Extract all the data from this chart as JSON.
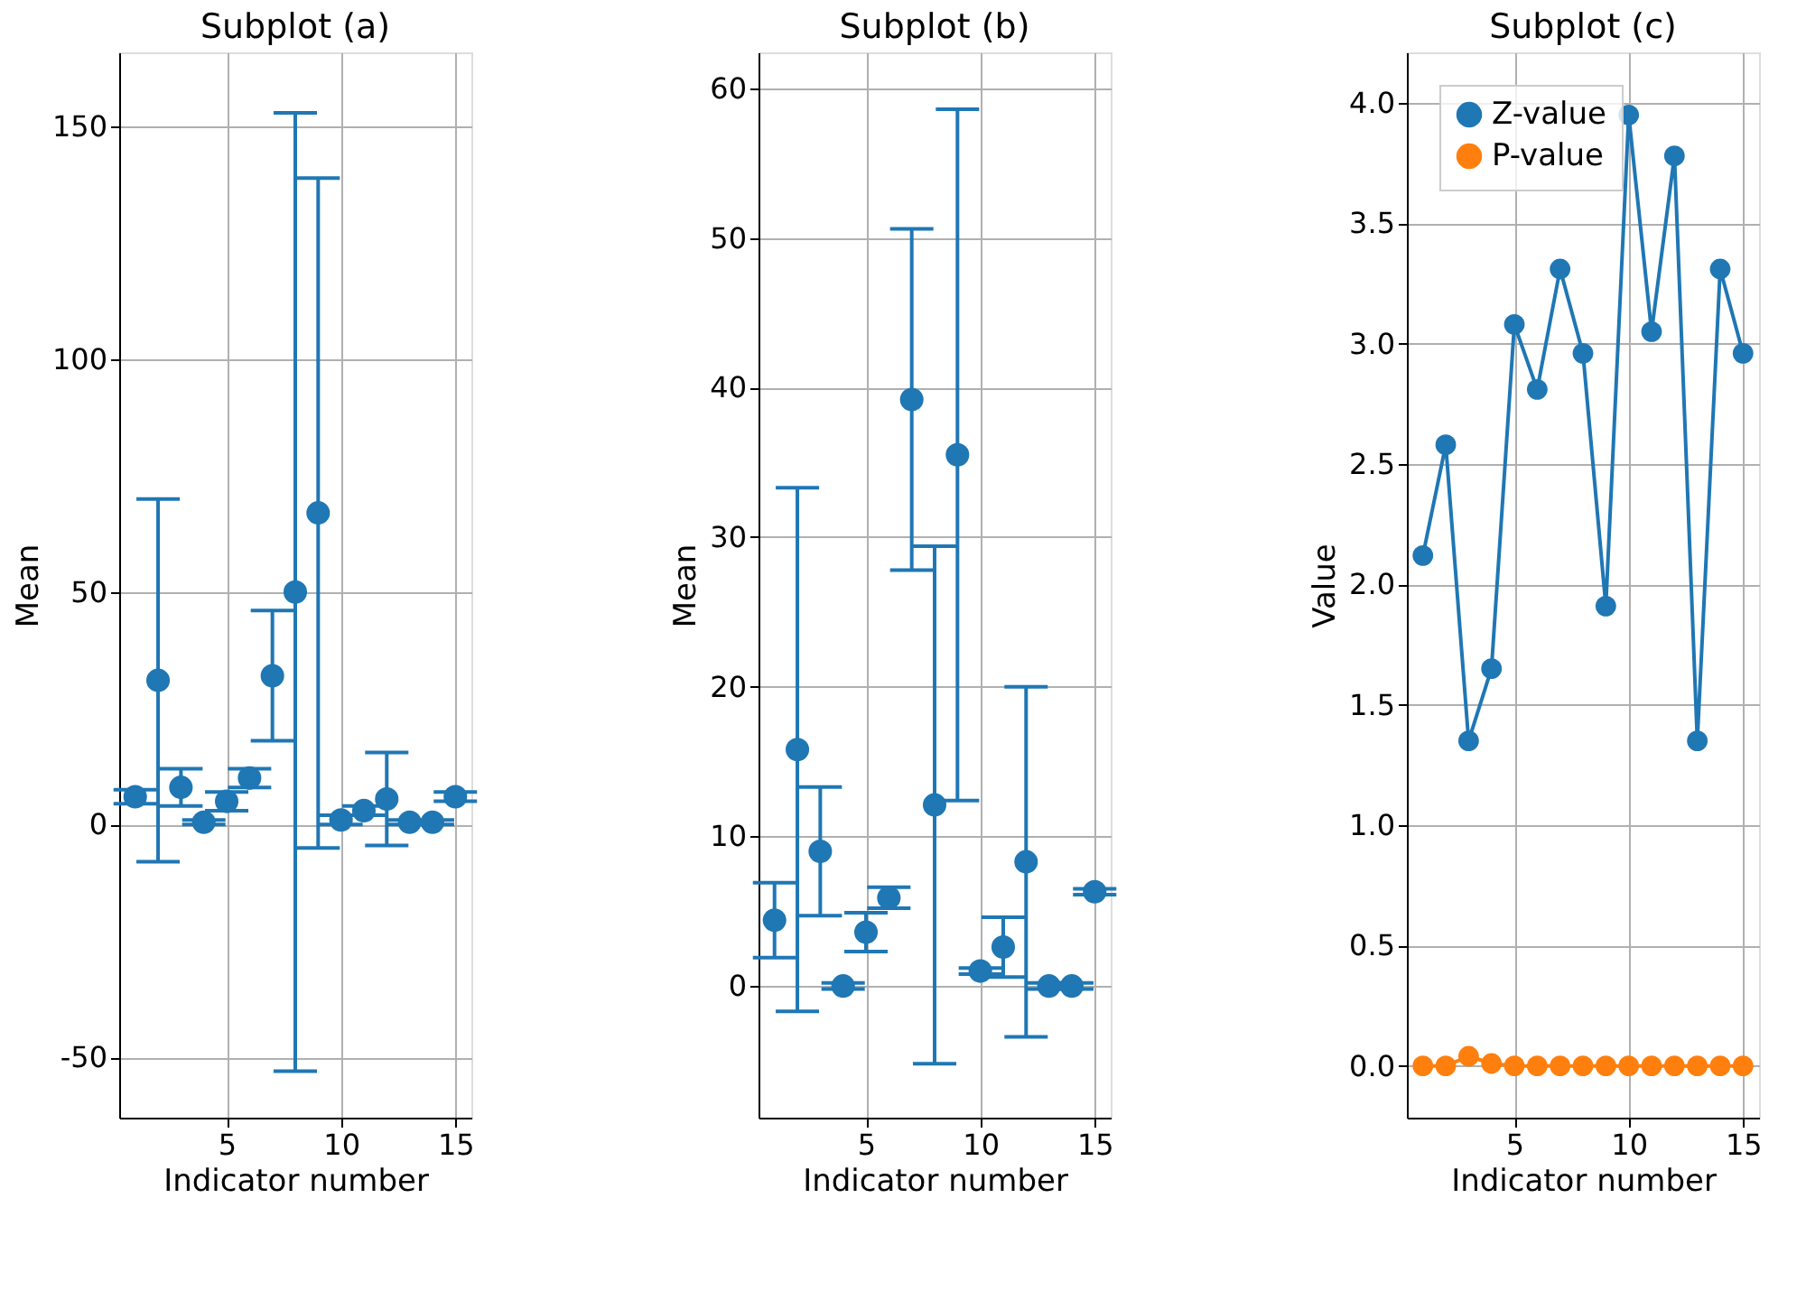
{
  "chart_data": [
    {
      "type": "scatter",
      "title": "Subplot (a)",
      "xlabel": "Indicator number",
      "ylabel": "Mean",
      "x": [
        1,
        2,
        3,
        4,
        5,
        6,
        7,
        8,
        9,
        10,
        11,
        12,
        13,
        14,
        15
      ],
      "xlim": [
        0.3,
        15.7
      ],
      "xticks": [
        5,
        10,
        15
      ],
      "ylim": [
        -63,
        166
      ],
      "yticks": [
        -50,
        0,
        50,
        100,
        150
      ],
      "grid": true,
      "marker": "circle",
      "legend": false,
      "series": [
        {
          "color": "#1f77b4",
          "values": [
            6,
            31,
            8,
            0.5,
            5,
            10,
            32,
            50,
            67,
            1,
            3,
            5.5,
            0.5,
            0.5,
            6
          ],
          "errors": [
            1.5,
            39,
            4,
            0.5,
            2,
            2,
            14,
            103,
            72,
            1,
            1,
            10,
            0.5,
            0.5,
            1
          ]
        }
      ]
    },
    {
      "type": "scatter",
      "title": "Subplot (b)",
      "xlabel": "Indicator number",
      "ylabel": "Mean",
      "x": [
        1,
        2,
        3,
        4,
        5,
        6,
        7,
        8,
        9,
        10,
        11,
        12,
        13,
        14,
        15
      ],
      "xlim": [
        0.3,
        15.7
      ],
      "xticks": [
        5,
        10,
        15
      ],
      "ylim": [
        -8.8,
        62.4
      ],
      "yticks": [
        0,
        10,
        20,
        30,
        40,
        50,
        60
      ],
      "grid": true,
      "marker": "circle",
      "legend": false,
      "series": [
        {
          "color": "#1f77b4",
          "values": [
            4.4,
            15.8,
            9,
            0,
            3.6,
            5.9,
            39.2,
            12.1,
            35.5,
            1,
            2.6,
            8.3,
            0,
            0,
            6.3
          ],
          "errors": [
            2.5,
            17.5,
            4.3,
            0.2,
            1.3,
            0.7,
            11.4,
            17.3,
            23.1,
            0.2,
            2,
            11.7,
            0.2,
            0.2,
            0.2
          ]
        }
      ]
    },
    {
      "type": "line",
      "title": "Subplot (c)",
      "xlabel": "Indicator number",
      "ylabel": "Value",
      "x": [
        1,
        2,
        3,
        4,
        5,
        6,
        7,
        8,
        9,
        10,
        11,
        12,
        13,
        14,
        15
      ],
      "xlim": [
        0.3,
        15.7
      ],
      "xticks": [
        5,
        10,
        15
      ],
      "ylim": [
        -0.215,
        4.21
      ],
      "yticks": [
        {
          "value": 0,
          "label": "0.0"
        },
        {
          "value": 0.5,
          "label": "0.5"
        },
        {
          "value": 1,
          "label": "1.0"
        },
        {
          "value": 1.5,
          "label": "1.5"
        },
        {
          "value": 2,
          "label": "2.0"
        },
        {
          "value": 2.5,
          "label": "2.5"
        },
        {
          "value": 3,
          "label": "3.0"
        },
        {
          "value": 3.5,
          "label": "3.5"
        },
        {
          "value": 4,
          "label": "4.0"
        }
      ],
      "grid": true,
      "marker": "circle",
      "line_style": "solid",
      "legend": "top left",
      "series": [
        {
          "name": "Z-value",
          "color": "#1f77b4",
          "values": [
            2.12,
            2.58,
            1.35,
            1.65,
            3.08,
            2.81,
            3.31,
            2.96,
            1.91,
            3.95,
            3.05,
            3.78,
            1.35,
            3.31,
            2.96
          ]
        },
        {
          "name": "P-value",
          "color": "#ff7f0e",
          "values": [
            0,
            0,
            0.04,
            0.01,
            0,
            0,
            0,
            0,
            0,
            0,
            0,
            0,
            0,
            0,
            0
          ]
        }
      ]
    }
  ]
}
